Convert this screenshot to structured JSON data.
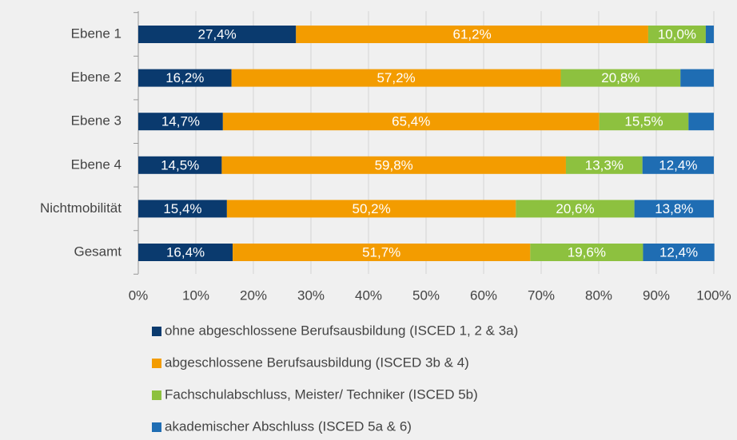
{
  "chart_data": {
    "type": "stacked_bar_horizontal",
    "categories": [
      "Ebene 1",
      "Ebene 2",
      "Ebene 3",
      "Ebene 4",
      "Nichtmobilität",
      "Gesamt"
    ],
    "series": [
      {
        "name": "ohne abgeschlossene Berufsausbildung (ISCED 1, 2 & 3a)",
        "color": "#0a3a6e",
        "values": [
          27.4,
          16.2,
          14.7,
          14.5,
          15.4,
          16.4
        ],
        "value_labels": [
          "27,4%",
          "16,2%",
          "14,7%",
          "14,5%",
          "15,4%",
          "16,4%"
        ]
      },
      {
        "name": "abgeschlossene Berufsausbildung (ISCED 3b & 4)",
        "color": "#f39c00",
        "values": [
          61.2,
          57.2,
          65.4,
          59.8,
          50.2,
          51.7
        ],
        "value_labels": [
          "61,2%",
          "57,2%",
          "65,4%",
          "59,8%",
          "50,2%",
          "51,7%"
        ]
      },
      {
        "name": "Fachschulabschluss, Meister/ Techniker (ISCED 5b)",
        "color": "#8dc13f",
        "values": [
          10.0,
          20.8,
          15.5,
          13.3,
          20.6,
          19.6
        ],
        "value_labels": [
          "10,0%",
          "20,8%",
          "15,5%",
          "13,3%",
          "20,6%",
          "19,6%"
        ]
      },
      {
        "name": "akademischer Abschluss (ISCED 5a & 6)",
        "color": "#1f6db3",
        "values": [
          1.4,
          5.8,
          4.4,
          12.4,
          13.8,
          12.4
        ],
        "value_labels": [
          null,
          null,
          null,
          "12,4%",
          "13,8%",
          "12,4%"
        ]
      }
    ],
    "xlim": [
      0,
      100
    ],
    "xticks": [
      {
        "value": 0,
        "label": "0%"
      },
      {
        "value": 10,
        "label": "10%"
      },
      {
        "value": 20,
        "label": "20%"
      },
      {
        "value": 30,
        "label": "30%"
      },
      {
        "value": 40,
        "label": "40%"
      },
      {
        "value": 50,
        "label": "50%"
      },
      {
        "value": 60,
        "label": "60%"
      },
      {
        "value": 70,
        "label": "70%"
      },
      {
        "value": 80,
        "label": "80%"
      },
      {
        "value": 90,
        "label": "90%"
      },
      {
        "value": 100,
        "label": "100%"
      }
    ],
    "grid": true
  }
}
